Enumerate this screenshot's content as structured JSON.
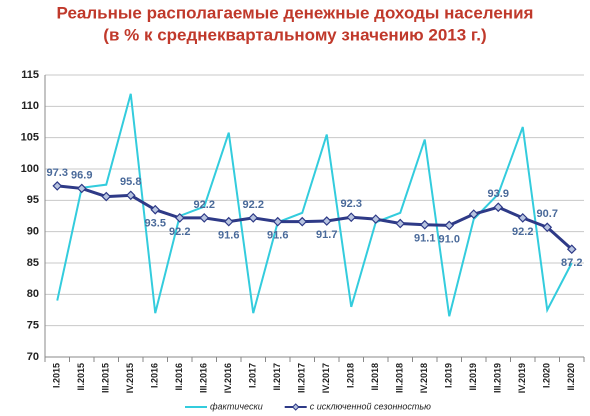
{
  "chart_data": {
    "type": "line",
    "title": "Реальные располагаемые денежные доходы населения",
    "subtitle": "(в % к среднеквартальному значению 2013 г.)",
    "categories": [
      "I.2015",
      "II.2015",
      "III.2015",
      "IV.2015",
      "I.2016",
      "II.2016",
      "III.2016",
      "IV.2016",
      "I.2017",
      "II.2017",
      "III.2017",
      "IV.2017",
      "I.2018",
      "II.2018",
      "III.2018",
      "IV.2018",
      "I.2019",
      "II.2019",
      "III.2019",
      "IV.2019",
      "I.2020",
      "II.2020"
    ],
    "series": [
      {
        "name": "фактически",
        "color": "#33ccdd",
        "marker": "none",
        "values": [
          79,
          97,
          97.5,
          112,
          77,
          92.5,
          94,
          105.8,
          77,
          91.5,
          93,
          105.5,
          78,
          91.5,
          93,
          104.7,
          76.5,
          92,
          96,
          106.7,
          77.5,
          85
        ]
      },
      {
        "name": "с исключенной сезонностью",
        "color": "#2e3a87",
        "marker": "diamond",
        "values": [
          97.3,
          96.9,
          95.6,
          95.8,
          93.5,
          92.2,
          92.2,
          91.6,
          92.2,
          91.6,
          91.6,
          91.7,
          92.3,
          92.0,
          91.3,
          91.1,
          91.0,
          92.8,
          93.9,
          92.2,
          90.7,
          87.2
        ],
        "value_labels": [
          "97.3",
          "96.9",
          null,
          "95.8",
          "93.5",
          "92.2",
          "92.2",
          "91.6",
          "92.2",
          "91.6",
          null,
          "91.7",
          "92.3",
          null,
          null,
          "91.1",
          "91.0",
          null,
          "93.9",
          "92.2",
          "90.7",
          "87.2"
        ]
      }
    ],
    "ylim": [
      70,
      115
    ],
    "yticks": [
      70,
      75,
      80,
      85,
      90,
      95,
      100,
      105,
      110,
      115
    ],
    "grid": true,
    "legend": "bottom"
  }
}
